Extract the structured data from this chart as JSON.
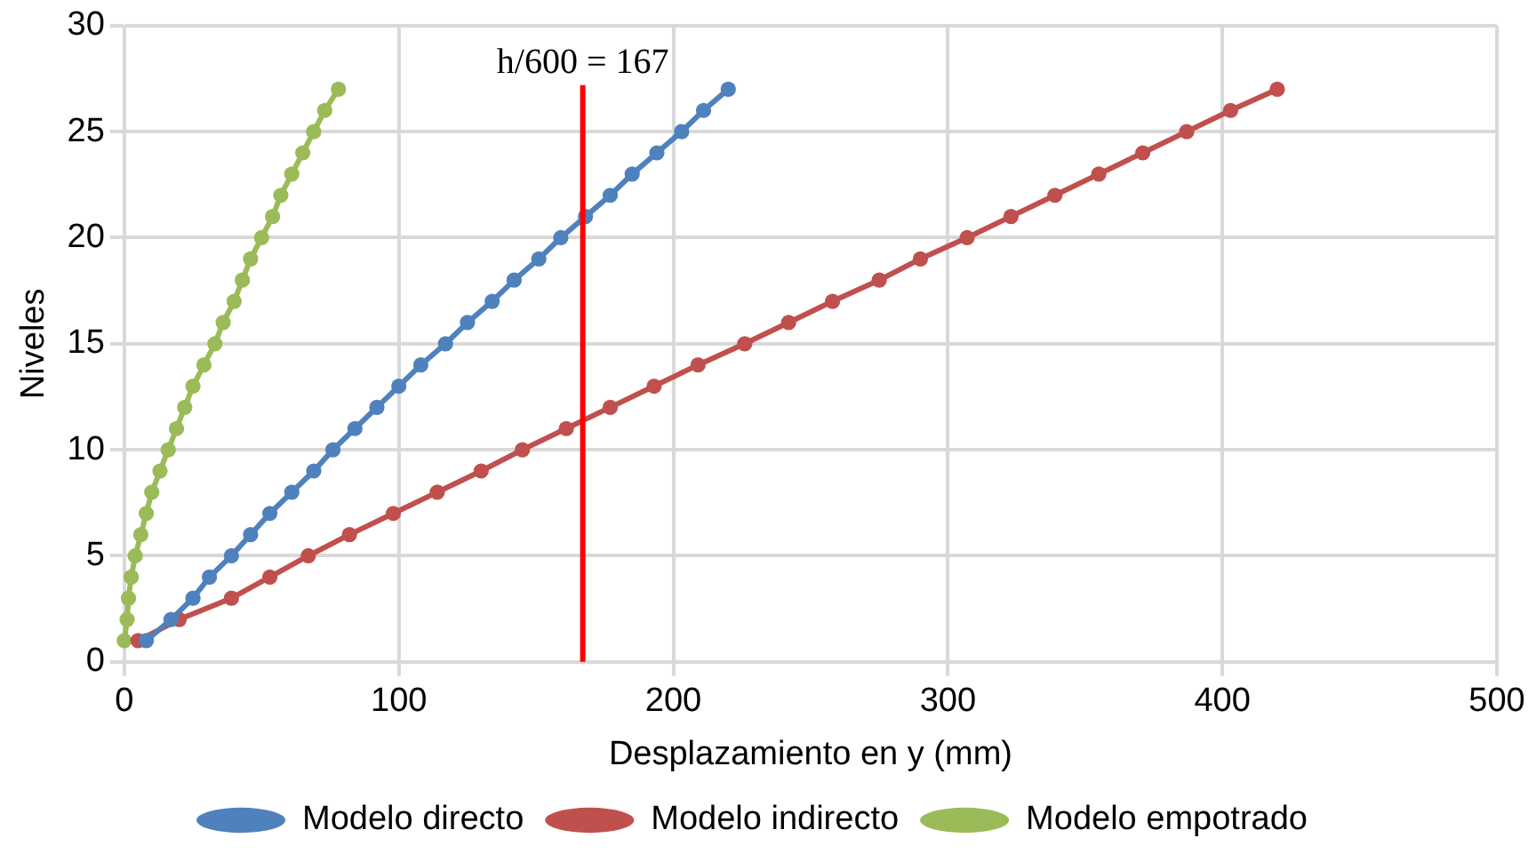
{
  "chart_data": {
    "type": "line",
    "xlabel": "Desplazamiento en y (mm)",
    "ylabel": "Niveles",
    "xlim": [
      0,
      500
    ],
    "xticks": [
      0,
      100,
      200,
      300,
      400,
      500
    ],
    "ylim": [
      0,
      30
    ],
    "yticks": [
      0,
      5,
      10,
      15,
      20,
      25,
      30
    ],
    "grid": true,
    "legend": "bottom",
    "marker": "circle",
    "line_style": "solid",
    "ref_lines": [
      {
        "axis": "x",
        "value": 167,
        "label": "h/600 = 167",
        "color": "#ff0000"
      }
    ],
    "series": [
      {
        "name": "Modelo directo",
        "color": "#4f81bd",
        "x": [
          8,
          17,
          25,
          31,
          39,
          46,
          53,
          61,
          69,
          76,
          84,
          92,
          100,
          108,
          117,
          125,
          134,
          142,
          151,
          159,
          168,
          177,
          185,
          194,
          203,
          211,
          220
        ],
        "values": [
          1,
          2,
          3,
          4,
          5,
          6,
          7,
          8,
          9,
          10,
          11,
          12,
          13,
          14,
          15,
          16,
          17,
          18,
          19,
          20,
          21,
          22,
          23,
          24,
          25,
          26,
          27
        ]
      },
      {
        "name": "Modelo indirecto",
        "color": "#c0504d",
        "x": [
          5,
          20,
          39,
          53,
          67,
          82,
          98,
          114,
          130,
          145,
          161,
          177,
          193,
          209,
          226,
          242,
          258,
          275,
          290,
          307,
          323,
          339,
          355,
          371,
          387,
          403,
          420
        ],
        "values": [
          1,
          2,
          3,
          4,
          5,
          6,
          7,
          8,
          9,
          10,
          11,
          12,
          13,
          14,
          15,
          16,
          17,
          18,
          19,
          20,
          21,
          22,
          23,
          24,
          25,
          26,
          27
        ]
      },
      {
        "name": "Modelo empotrado",
        "color": "#9bbb59",
        "x": [
          0,
          1,
          1.5,
          2.5,
          4,
          6,
          8,
          10,
          13,
          16,
          19,
          22,
          25,
          29,
          33,
          36,
          40,
          43,
          46,
          50,
          54,
          57,
          61,
          65,
          69,
          73,
          78
        ],
        "values": [
          1,
          2,
          3,
          4,
          5,
          6,
          7,
          8,
          9,
          10,
          11,
          12,
          13,
          14,
          15,
          16,
          17,
          18,
          19,
          20,
          21,
          22,
          23,
          24,
          25,
          26,
          27
        ]
      }
    ]
  }
}
